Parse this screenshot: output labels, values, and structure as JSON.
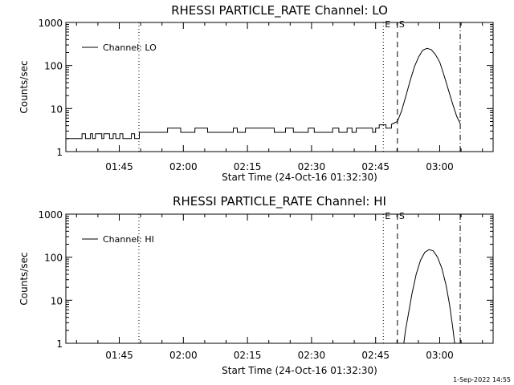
{
  "footer": {
    "timestamp": "1-Sep-2022 14:55"
  },
  "chart_data": [
    {
      "type": "line",
      "title": "RHESSI PARTICLE_RATE Channel: LO",
      "xlabel": "Start Time (24-Oct-16 01:32:30)",
      "ylabel": "Counts/sec",
      "yscale": "log",
      "ylim": [
        1,
        1000
      ],
      "xlim_minutes": [
        0,
        100
      ],
      "x_ticks": [
        {
          "label": "01:45",
          "minutes": 12.5
        },
        {
          "label": "02:00",
          "minutes": 27.5
        },
        {
          "label": "02:15",
          "minutes": 42.5
        },
        {
          "label": "02:30",
          "minutes": 57.5
        },
        {
          "label": "02:45",
          "minutes": 72.5
        },
        {
          "label": "03:00",
          "minutes": 87.5
        }
      ],
      "y_ticks": [
        {
          "label": "1",
          "value": 1
        },
        {
          "label": "10",
          "value": 10
        },
        {
          "label": "100",
          "value": 100
        },
        {
          "label": "1000",
          "value": 1000
        }
      ],
      "legend": {
        "label": "Channel: LO",
        "position": "top-left"
      },
      "vlines": [
        {
          "minutes": 17.1,
          "style": "dotted",
          "label": ""
        },
        {
          "minutes": 74.3,
          "style": "dotted",
          "label": "E"
        },
        {
          "minutes": 77.6,
          "style": "dashed",
          "label": "S"
        },
        {
          "minutes": 92.3,
          "style": "dashdot",
          "label": ""
        }
      ],
      "series": [
        {
          "name": "Channel: LO",
          "noisy": [
            {
              "from": 0.0,
              "to": 17.2,
              "levels": [
                2.0,
                2.6
              ],
              "period": 0.9
            },
            {
              "from": 17.2,
              "to": 72.5,
              "levels": [
                2.8,
                3.5
              ],
              "period": 1.5
            },
            {
              "from": 72.5,
              "to": 76.2,
              "levels": [
                3.5,
                4.2
              ],
              "period": 0.8
            }
          ],
          "points": [
            {
              "minutes": 76.2,
              "value": 4.3
            },
            {
              "minutes": 77.6,
              "value": 5.0
            },
            {
              "minutes": 78.6,
              "value": 9
            },
            {
              "minutes": 79.6,
              "value": 20
            },
            {
              "minutes": 80.6,
              "value": 45
            },
            {
              "minutes": 81.6,
              "value": 95
            },
            {
              "minutes": 82.6,
              "value": 160
            },
            {
              "minutes": 83.5,
              "value": 225
            },
            {
              "minutes": 84.5,
              "value": 250
            },
            {
              "minutes": 85.5,
              "value": 235
            },
            {
              "minutes": 86.5,
              "value": 180
            },
            {
              "minutes": 87.5,
              "value": 120
            },
            {
              "minutes": 88.5,
              "value": 60
            },
            {
              "minutes": 89.5,
              "value": 28
            },
            {
              "minutes": 90.5,
              "value": 13
            },
            {
              "minutes": 91.5,
              "value": 6.5
            },
            {
              "minutes": 92.3,
              "value": 4.5
            }
          ]
        }
      ]
    },
    {
      "type": "line",
      "title": "RHESSI PARTICLE_RATE Channel: HI",
      "xlabel": "Start Time (24-Oct-16 01:32:30)",
      "ylabel": "Counts/sec",
      "yscale": "log",
      "ylim": [
        1,
        1000
      ],
      "xlim_minutes": [
        0,
        100
      ],
      "x_ticks": [
        {
          "label": "01:45",
          "minutes": 12.5
        },
        {
          "label": "02:00",
          "minutes": 27.5
        },
        {
          "label": "02:15",
          "minutes": 42.5
        },
        {
          "label": "02:30",
          "minutes": 57.5
        },
        {
          "label": "02:45",
          "minutes": 72.5
        },
        {
          "label": "03:00",
          "minutes": 87.5
        }
      ],
      "y_ticks": [
        {
          "label": "1",
          "value": 1
        },
        {
          "label": "10",
          "value": 10
        },
        {
          "label": "100",
          "value": 100
        },
        {
          "label": "1000",
          "value": 1000
        }
      ],
      "legend": {
        "label": "Channel: HI",
        "position": "top-left"
      },
      "vlines": [
        {
          "minutes": 17.1,
          "style": "dotted",
          "label": ""
        },
        {
          "minutes": 74.3,
          "style": "dotted",
          "label": "E"
        },
        {
          "minutes": 77.6,
          "style": "dashed",
          "label": "S"
        },
        {
          "minutes": 92.3,
          "style": "dashdot",
          "label": ""
        }
      ],
      "series": [
        {
          "name": "Channel: HI",
          "noisy": [],
          "points": [
            {
              "minutes": 79.1,
              "value": 1.0
            },
            {
              "minutes": 79.5,
              "value": 2.0
            },
            {
              "minutes": 80.2,
              "value": 5
            },
            {
              "minutes": 81.0,
              "value": 14
            },
            {
              "minutes": 82.0,
              "value": 40
            },
            {
              "minutes": 83.0,
              "value": 85
            },
            {
              "minutes": 84.0,
              "value": 130
            },
            {
              "minutes": 85.0,
              "value": 150
            },
            {
              "minutes": 86.0,
              "value": 140
            },
            {
              "minutes": 87.0,
              "value": 100
            },
            {
              "minutes": 88.0,
              "value": 55
            },
            {
              "minutes": 89.0,
              "value": 22
            },
            {
              "minutes": 89.8,
              "value": 8
            },
            {
              "minutes": 90.5,
              "value": 2.5
            },
            {
              "minutes": 91.0,
              "value": 1.0
            }
          ]
        }
      ]
    }
  ]
}
